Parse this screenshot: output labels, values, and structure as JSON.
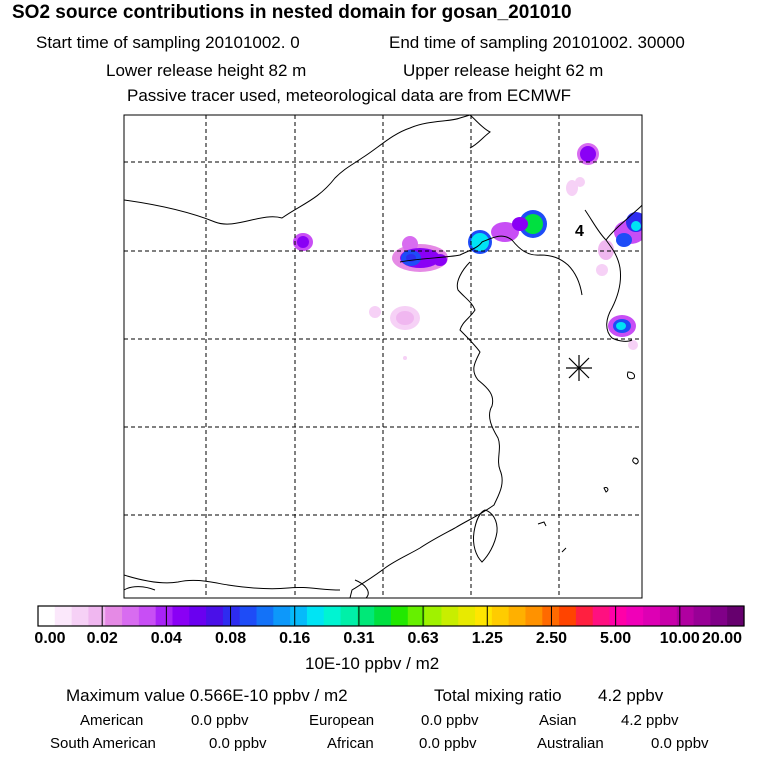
{
  "header": {
    "title": "SO2 source contributions in nested domain for gosan_201010",
    "start_label": "Start time of sampling 20101002.     0",
    "end_label": "End time of sampling 20101002. 30000",
    "lower_label": "Lower release height   82 m",
    "upper_label": "Upper release height   62 m",
    "note": "Passive tracer used, meteorological data are from ECMWF"
  },
  "map": {
    "marker_label": "4",
    "site_marker": "asterisk-icon",
    "grid_lines": "dashed"
  },
  "colorbar": {
    "ticks": [
      "0.00",
      "0.02",
      "0.04",
      "0.08",
      "0.16",
      "0.31",
      "0.63",
      "1.25",
      "2.50",
      "5.00",
      "10.00",
      "20.00"
    ],
    "colors": [
      "#ffffff",
      "#fbe8fb",
      "#f6d1f6",
      "#f0b7f0",
      "#e58ae5",
      "#d86cf0",
      "#c84ef5",
      "#a822f7",
      "#8a00f5",
      "#6a00f0",
      "#4a10e8",
      "#2e2cf0",
      "#1e4cf7",
      "#1372f8",
      "#0d98fa",
      "#06bafa",
      "#00e4f4",
      "#00f4d2",
      "#00f0a8",
      "#00e878",
      "#00e040",
      "#22e800",
      "#66f000",
      "#a0f200",
      "#c8ee00",
      "#e8ea00",
      "#ffe600",
      "#ffcc00",
      "#ffb000",
      "#ff9200",
      "#ff6a00",
      "#ff4400",
      "#ff2040",
      "#ff1080",
      "#ff00a8",
      "#f000b8",
      "#dd00b4",
      "#c800aa",
      "#b000a0",
      "#980096",
      "#800088",
      "#66006e"
    ],
    "units": "10E-10 ppbv / m2"
  },
  "summary": {
    "max_value": "Maximum value  0.566E-10 ppbv / m2",
    "total_label": "Total mixing ratio",
    "total_value": "4.2 ppbv",
    "regions_row1": [
      {
        "name": "American",
        "value": "0.0 ppbv"
      },
      {
        "name": "European",
        "value": "0.0 ppbv"
      },
      {
        "name": "Asian",
        "value": "4.2 ppbv"
      }
    ],
    "regions_row2": [
      {
        "name": "South American",
        "value": "0.0 ppbv"
      },
      {
        "name": "African",
        "value": "0.0 ppbv"
      },
      {
        "name": "Australian",
        "value": "0.0 ppbv"
      }
    ]
  }
}
